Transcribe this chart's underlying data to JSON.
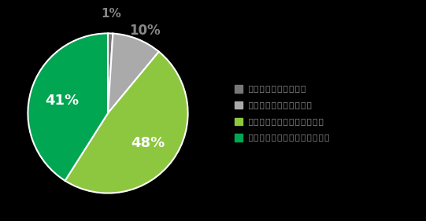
{
  "slices": [
    1,
    10,
    48,
    41
  ],
  "colors": [
    "#777777",
    "#aaaaaa",
    "#8dc63f",
    "#00a651"
  ],
  "labels": [
    "1%",
    "10%",
    "48%",
    "41%"
  ],
  "legend_labels": [
    "とても改善したと思う",
    "まあまあ改善したと思う",
    "あまり改善していないと思う",
    "まったく改嚄していないと思う"
  ],
  "bg_color": "#000000",
  "text_color": "#888888",
  "label_fontsize": 13,
  "legend_fontsize": 9,
  "edge_color": "#ffffff",
  "edge_width": 1.5
}
